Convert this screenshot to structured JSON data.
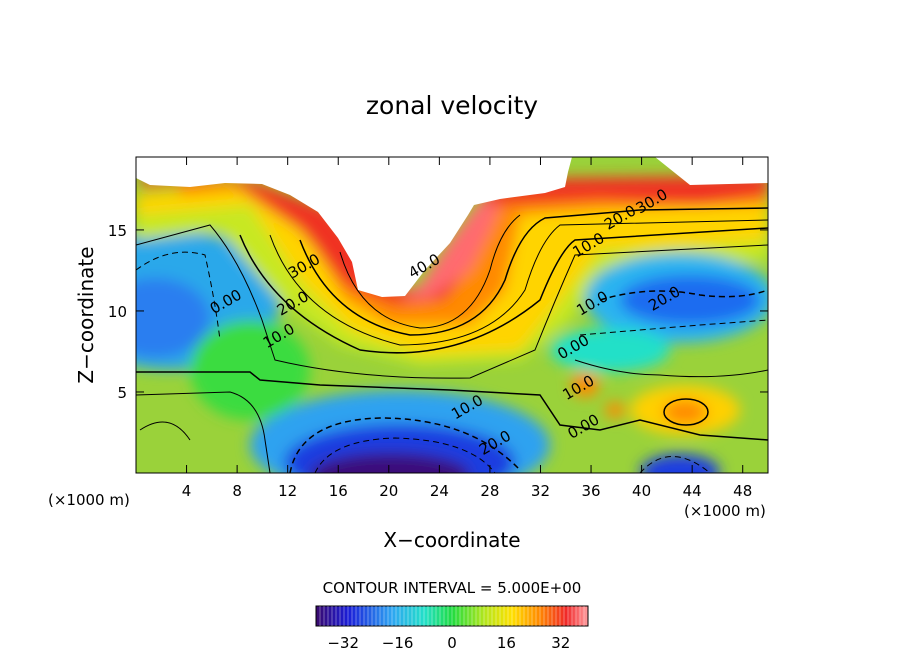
{
  "chart_data": {
    "type": "heatmap",
    "subtype": "filled-contour",
    "title": "zonal velocity",
    "xlabel": "X−coordinate",
    "ylabel": "Z−coordinate",
    "x_unit_label": "(×1000 m)",
    "y_unit_label": "(×1000 m)",
    "xlim": [
      0,
      50
    ],
    "ylim": [
      0,
      19.5
    ],
    "x_ticks": [
      4,
      8,
      12,
      16,
      20,
      24,
      28,
      32,
      36,
      40,
      44,
      48
    ],
    "y_ticks": [
      5,
      10,
      15
    ],
    "contour_interval_text": "CONTOUR INTERVAL = 5.000E+00",
    "colorbar": {
      "range": [
        -40,
        40
      ],
      "ticks": [
        -32,
        -16,
        0,
        16,
        32
      ],
      "tick_labels": [
        "−32",
        "−16",
        "0",
        "16",
        "32"
      ]
    },
    "contour_labels": [
      {
        "text": "40.0",
        "x": 23.0,
        "y": 12.5
      },
      {
        "text": "30.0",
        "x": 13.5,
        "y": 12.5
      },
      {
        "text": "20.0",
        "x": 12.6,
        "y": 10.2
      },
      {
        "text": "10.0",
        "x": 11.5,
        "y": 8.2
      },
      {
        "text": "0.00",
        "x": 7.3,
        "y": 10.3
      },
      {
        "text": "30.0",
        "x": 41.0,
        "y": 16.5
      },
      {
        "text": "20.0",
        "x": 38.5,
        "y": 15.5
      },
      {
        "text": "10.0",
        "x": 36.0,
        "y": 13.8
      },
      {
        "text": "20.0",
        "x": 42.0,
        "y": 10.5
      },
      {
        "text": "10.0",
        "x": 36.3,
        "y": 10.2
      },
      {
        "text": "0.00",
        "x": 34.8,
        "y": 7.5
      },
      {
        "text": "10.0",
        "x": 35.2,
        "y": 5.0
      },
      {
        "text": "0.00",
        "x": 35.6,
        "y": 2.6
      },
      {
        "text": "10.0",
        "x": 26.4,
        "y": 3.8
      },
      {
        "text": "20.0",
        "x": 28.6,
        "y": 1.6
      }
    ],
    "grid": false,
    "blank_region_note": ""
  }
}
